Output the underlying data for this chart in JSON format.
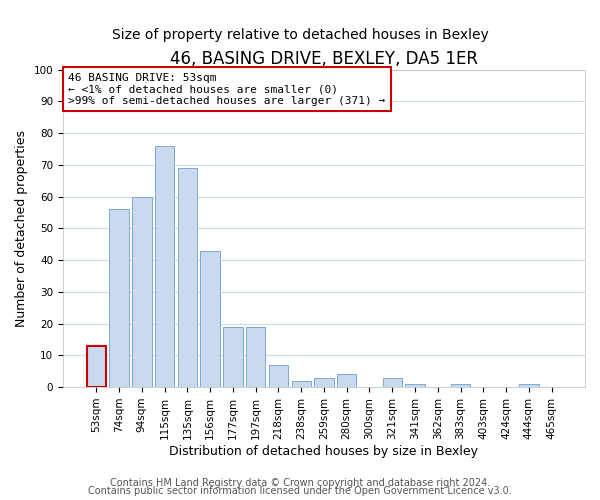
{
  "title": "46, BASING DRIVE, BEXLEY, DA5 1ER",
  "subtitle": "Size of property relative to detached houses in Bexley",
  "xlabel": "Distribution of detached houses by size in Bexley",
  "ylabel": "Number of detached properties",
  "categories": [
    "53sqm",
    "74sqm",
    "94sqm",
    "115sqm",
    "135sqm",
    "156sqm",
    "177sqm",
    "197sqm",
    "218sqm",
    "238sqm",
    "259sqm",
    "280sqm",
    "300sqm",
    "321sqm",
    "341sqm",
    "362sqm",
    "383sqm",
    "403sqm",
    "424sqm",
    "444sqm",
    "465sqm"
  ],
  "values": [
    13,
    56,
    60,
    76,
    69,
    43,
    19,
    19,
    7,
    2,
    3,
    4,
    0,
    3,
    1,
    0,
    1,
    0,
    0,
    1,
    0
  ],
  "bar_color": "#c8d9f0",
  "bar_edge_color": "#7aaad0",
  "highlight_bar_index": 0,
  "highlight_bar_edge_color": "#cc0000",
  "annotation_line1": "46 BASING DRIVE: 53sqm",
  "annotation_line2": "← <1% of detached houses are smaller (0)",
  "annotation_line3": ">99% of semi-detached houses are larger (371) →",
  "annotation_box_color": "#ffffff",
  "annotation_box_edge_color": "#cc0000",
  "ylim": [
    0,
    100
  ],
  "yticks": [
    0,
    10,
    20,
    30,
    40,
    50,
    60,
    70,
    80,
    90,
    100
  ],
  "footer_line1": "Contains HM Land Registry data © Crown copyright and database right 2024.",
  "footer_line2": "Contains public sector information licensed under the Open Government Licence v3.0.",
  "background_color": "#ffffff",
  "grid_color": "#ccdde8",
  "title_fontsize": 12,
  "subtitle_fontsize": 10,
  "axis_label_fontsize": 9,
  "tick_fontsize": 7.5,
  "annotation_fontsize": 8,
  "footer_fontsize": 7
}
